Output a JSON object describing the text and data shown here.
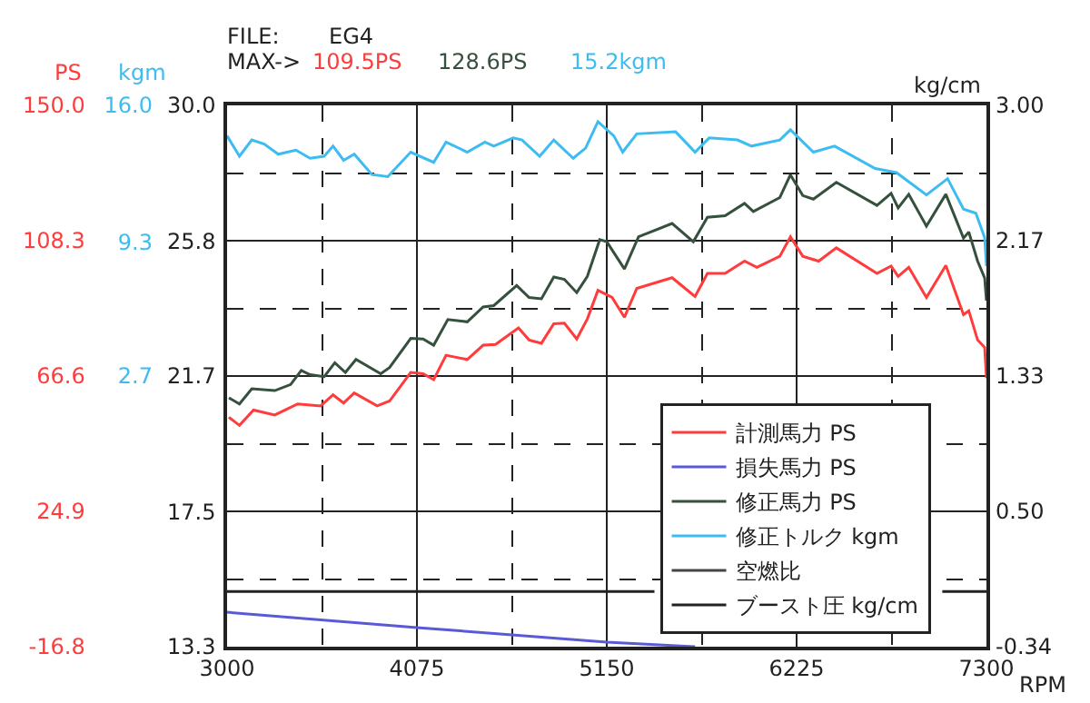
{
  "chart_data": {
    "type": "line",
    "ylabel": "PS",
    "y3label": "kgm",
    "y2label": "kg/cm",
    "xlabel": "RPM",
    "annotations": [
      "FILE:",
      "EG4",
      "MAX->",
      "109.5PS",
      "128.6PS",
      "15.2kgm",
      "30.0",
      "25.8",
      "21.7",
      "17.5",
      "13.3"
    ],
    "xlim": [
      3000,
      7300
    ],
    "xticks": [
      3000,
      4075,
      5150,
      6225,
      7300
    ],
    "ylim": [
      -16.8,
      150.0
    ],
    "yticks": [
      -16.8,
      24.9,
      66.6,
      108.3,
      {
        "value": 150,
        "label": "150.0"
      }
    ],
    "y3lim": [
      -10.6,
      16.0
    ],
    "y3ticks": [
      2.7,
      9.3,
      {
        "value": 16,
        "label": "16.0"
      }
    ],
    "y2lim": [
      -0.34,
      3.0
    ],
    "y2ticks": [
      -0.34,
      {
        "value": 0.5,
        "label": "0.50"
      },
      1.33,
      2.17,
      {
        "value": 3.0,
        "label": "3.00"
      }
    ],
    "grid": true,
    "legend": "bottom right",
    "marker": "none",
    "line_style": "solid",
    "series": [
      {
        "name": "計測馬力 PS",
        "color": "#ff3b3b",
        "x": [
          3010,
          3070,
          3150,
          3270,
          3400,
          3530,
          3600,
          3660,
          3720,
          3850,
          3920,
          4040,
          4110,
          4170,
          4240,
          4360,
          4450,
          4520,
          4650,
          4710,
          4780,
          4850,
          4910,
          4980,
          5040,
          5100,
          5180,
          5250,
          5320,
          5520,
          5650,
          5720,
          5820,
          5930,
          6000,
          6130,
          6190,
          6260,
          6350,
          6450,
          6680,
          6760,
          6800,
          6860,
          6960,
          7070,
          7170,
          7200,
          7250,
          7290,
          7300
        ],
        "values": [
          53.9,
          51.4,
          56.1,
          54.6,
          58.0,
          57.4,
          60.8,
          58.3,
          61.4,
          57.4,
          58.9,
          67.7,
          67.3,
          65.5,
          73.0,
          71.7,
          76.1,
          76.3,
          81.4,
          77.7,
          76.7,
          82.7,
          82.9,
          78.0,
          84.2,
          93.0,
          90.8,
          84.7,
          93.6,
          96.9,
          91.1,
          98.2,
          98.2,
          102.0,
          100.1,
          103.5,
          109.5,
          103.5,
          102.0,
          106.1,
          98.2,
          100.5,
          97.3,
          100.1,
          90.8,
          100.7,
          85.5,
          86.7,
          77.7,
          75.4,
          66.0
        ]
      },
      {
        "name": "損失馬力 PS",
        "color": "#5a5ad8",
        "x": [
          3000,
          4075,
          5150,
          5650
        ],
        "values": [
          -6.2,
          -10.9,
          -15.4,
          -16.8
        ]
      },
      {
        "name": "修正馬力 PS",
        "color": "#35503c",
        "x": [
          3010,
          3070,
          3140,
          3270,
          3360,
          3420,
          3470,
          3550,
          3610,
          3670,
          3730,
          3870,
          3920,
          4040,
          4110,
          4170,
          4250,
          4360,
          4450,
          4510,
          4640,
          4710,
          4780,
          4850,
          4910,
          4980,
          5040,
          5110,
          5150,
          5250,
          5330,
          5520,
          5640,
          5720,
          5820,
          5930,
          5980,
          6130,
          6190,
          6260,
          6320,
          6450,
          6680,
          6760,
          6800,
          6860,
          6960,
          7070,
          7170,
          7200,
          7250,
          7290,
          7300
        ],
        "values": [
          59.9,
          58.0,
          62.7,
          62.1,
          64.0,
          68.3,
          67.0,
          66.4,
          70.7,
          67.7,
          71.7,
          67.3,
          69.2,
          78.2,
          78.0,
          76.1,
          84.0,
          83.3,
          87.9,
          88.3,
          94.5,
          90.8,
          90.4,
          97.1,
          96.4,
          92.3,
          97.3,
          108.6,
          108.0,
          99.6,
          109.5,
          113.6,
          108.0,
          115.5,
          116.0,
          119.8,
          117.3,
          121.6,
          128.6,
          122.2,
          121.1,
          126.3,
          119.2,
          122.9,
          118.4,
          122.6,
          112.8,
          122.6,
          109.1,
          111.0,
          102.0,
          96.8,
          89.8
        ]
      },
      {
        "name": "修正トルク kgm",
        "color": "#3cbcf0",
        "axis": "y3",
        "x": [
          3000,
          3070,
          3140,
          3210,
          3290,
          3390,
          3470,
          3550,
          3600,
          3660,
          3720,
          3820,
          3910,
          4040,
          4170,
          4240,
          4360,
          4460,
          4510,
          4620,
          4670,
          4770,
          4850,
          4960,
          5030,
          5100,
          5190,
          5240,
          5320,
          5540,
          5650,
          5730,
          5890,
          5970,
          6130,
          6190,
          6320,
          6440,
          6670,
          6790,
          6960,
          7080,
          7170,
          7240,
          7290,
          7300
        ],
        "values": [
          14.5,
          13.5,
          14.3,
          14.1,
          13.6,
          13.8,
          13.4,
          13.5,
          14.0,
          13.3,
          13.6,
          12.6,
          12.5,
          13.7,
          13.2,
          14.2,
          13.7,
          14.2,
          14.0,
          14.4,
          14.3,
          13.5,
          14.3,
          13.4,
          13.9,
          15.2,
          14.5,
          13.7,
          14.6,
          14.7,
          13.7,
          14.4,
          14.3,
          14.0,
          14.3,
          14.8,
          13.7,
          14.0,
          12.9,
          12.7,
          11.6,
          12.4,
          10.9,
          10.7,
          9.5,
          8.1
        ]
      },
      {
        "name": "空燃比",
        "color": "#444444"
      },
      {
        "name": "ブースト圧 kg/cm",
        "color": "#222222",
        "axis": "y2",
        "x": [
          3000,
          5420,
          6300,
          7050,
          7300
        ],
        "values": [
          0.0,
          0.0,
          null,
          0.0,
          0.0
        ]
      }
    ]
  }
}
